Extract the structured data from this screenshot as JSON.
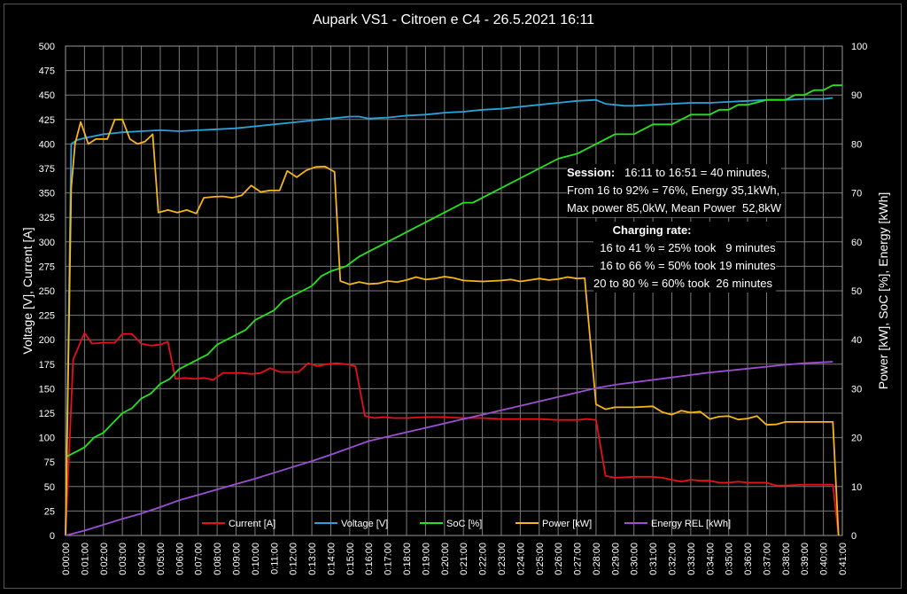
{
  "chart_data": {
    "type": "line",
    "title": "Aupark VS1 - Citroen e C4 - 26.5.2021 16:11",
    "ylabel_left": "Voltage [V], Current [A]",
    "ylabel_right": "Power [kW], SoC [%], Energy [kWh]",
    "xlabel": "",
    "ylim_left": [
      0,
      500
    ],
    "ylim_right": [
      0,
      100
    ],
    "xlim_minutes": [
      0,
      41
    ],
    "grid": true,
    "legend_position": "bottom",
    "x_tick_labels": [
      "0:00:00",
      "0:01:00",
      "0:02:00",
      "0:03:00",
      "0:04:00",
      "0:05:00",
      "0:06:00",
      "0:07:00",
      "0:08:00",
      "0:09:00",
      "0:10:00",
      "0:11:00",
      "0:12:00",
      "0:13:00",
      "0:14:00",
      "0:15:00",
      "0:16:00",
      "0:17:00",
      "0:18:00",
      "0:19:00",
      "0:20:00",
      "0:21:00",
      "0:22:00",
      "0:23:00",
      "0:24:00",
      "0:25:00",
      "0:26:00",
      "0:27:00",
      "0:28:00",
      "0:29:00",
      "0:30:00",
      "0:31:00",
      "0:32:00",
      "0:33:00",
      "0:34:00",
      "0:35:00",
      "0:36:00",
      "0:37:00",
      "0:38:00",
      "0:39:00",
      "0:40:00",
      "0:41:00"
    ],
    "y_left_ticks": [
      0,
      25,
      50,
      75,
      100,
      125,
      150,
      175,
      200,
      225,
      250,
      275,
      300,
      325,
      350,
      375,
      400,
      425,
      450,
      475,
      500
    ],
    "y_right_ticks": [
      0,
      10,
      20,
      30,
      40,
      50,
      60,
      70,
      80,
      90,
      100
    ],
    "series": [
      {
        "name": "Current [A]",
        "axis": "left",
        "color": "#e8101a",
        "points": [
          [
            0,
            0
          ],
          [
            0.4,
            180
          ],
          [
            1,
            207
          ],
          [
            1.4,
            196
          ],
          [
            2,
            197
          ],
          [
            2.6,
            197
          ],
          [
            3,
            206
          ],
          [
            3.5,
            206
          ],
          [
            4,
            196
          ],
          [
            4.5,
            194
          ],
          [
            5,
            195
          ],
          [
            5.4,
            198
          ],
          [
            5.8,
            160
          ],
          [
            6.3,
            161
          ],
          [
            6.8,
            160
          ],
          [
            7.3,
            161
          ],
          [
            7.8,
            159
          ],
          [
            8.3,
            166
          ],
          [
            8.8,
            166
          ],
          [
            9.3,
            166
          ],
          [
            9.8,
            165
          ],
          [
            10.3,
            166
          ],
          [
            10.8,
            171
          ],
          [
            11.3,
            167
          ],
          [
            11.8,
            167
          ],
          [
            12.3,
            167
          ],
          [
            12.8,
            176
          ],
          [
            13.3,
            173
          ],
          [
            13.8,
            175
          ],
          [
            14.3,
            176
          ],
          [
            14.8,
            175
          ],
          [
            15.3,
            173
          ],
          [
            15.8,
            122
          ],
          [
            16.3,
            120
          ],
          [
            16.8,
            121
          ],
          [
            17.3,
            120
          ],
          [
            18,
            120
          ],
          [
            19,
            121
          ],
          [
            20,
            121
          ],
          [
            21,
            120
          ],
          [
            22,
            120
          ],
          [
            23,
            119
          ],
          [
            24,
            119
          ],
          [
            25,
            119
          ],
          [
            26,
            118
          ],
          [
            27,
            118
          ],
          [
            27.5,
            119
          ],
          [
            28,
            118
          ],
          [
            28.5,
            61
          ],
          [
            29,
            59
          ],
          [
            30,
            60
          ],
          [
            31,
            60
          ],
          [
            31.5,
            59
          ],
          [
            32,
            57
          ],
          [
            32.5,
            55
          ],
          [
            33,
            57
          ],
          [
            33.5,
            56
          ],
          [
            34,
            56
          ],
          [
            34.5,
            54
          ],
          [
            35,
            54
          ],
          [
            35.5,
            55
          ],
          [
            36,
            54
          ],
          [
            37,
            54
          ],
          [
            37.5,
            51
          ],
          [
            38,
            51
          ],
          [
            39,
            52
          ],
          [
            40.5,
            52
          ],
          [
            40.8,
            0
          ]
        ]
      },
      {
        "name": "Voltage [V]",
        "axis": "left",
        "color": "#28a4dc",
        "points": [
          [
            0,
            0
          ],
          [
            0.3,
            400
          ],
          [
            0.6,
            404
          ],
          [
            1,
            406
          ],
          [
            2,
            410
          ],
          [
            3,
            412
          ],
          [
            4,
            413
          ],
          [
            5,
            414
          ],
          [
            6,
            413
          ],
          [
            7,
            414
          ],
          [
            8,
            415
          ],
          [
            9,
            416
          ],
          [
            10,
            418
          ],
          [
            11,
            420
          ],
          [
            12,
            422
          ],
          [
            13,
            424
          ],
          [
            14,
            426
          ],
          [
            15,
            428
          ],
          [
            15.5,
            428
          ],
          [
            16,
            426
          ],
          [
            17,
            427
          ],
          [
            18,
            429
          ],
          [
            19,
            430
          ],
          [
            20,
            432
          ],
          [
            21,
            433
          ],
          [
            22,
            435
          ],
          [
            23,
            436
          ],
          [
            24,
            438
          ],
          [
            25,
            440
          ],
          [
            26,
            442
          ],
          [
            27,
            444
          ],
          [
            28,
            445
          ],
          [
            28.5,
            441
          ],
          [
            29,
            440
          ],
          [
            29.5,
            439
          ],
          [
            30,
            439
          ],
          [
            31,
            440
          ],
          [
            32,
            441
          ],
          [
            33,
            442
          ],
          [
            34,
            442
          ],
          [
            35,
            443
          ],
          [
            36,
            444
          ],
          [
            37,
            445
          ],
          [
            38,
            445
          ],
          [
            39,
            446
          ],
          [
            40,
            446
          ],
          [
            40.5,
            447
          ]
        ]
      },
      {
        "name": "SoC [%]",
        "axis": "right",
        "color": "#27e31d",
        "points": [
          [
            0,
            16
          ],
          [
            1,
            18
          ],
          [
            1.5,
            20
          ],
          [
            2,
            21
          ],
          [
            2.5,
            23
          ],
          [
            3,
            25
          ],
          [
            3.5,
            26
          ],
          [
            4,
            28
          ],
          [
            4.5,
            29
          ],
          [
            5,
            31
          ],
          [
            5.5,
            32
          ],
          [
            6,
            34
          ],
          [
            7,
            36
          ],
          [
            7.5,
            37
          ],
          [
            8,
            39
          ],
          [
            9,
            41
          ],
          [
            9.5,
            42
          ],
          [
            10,
            44
          ],
          [
            11,
            46
          ],
          [
            11.5,
            48
          ],
          [
            12,
            49
          ],
          [
            13,
            51
          ],
          [
            13.5,
            53
          ],
          [
            14,
            54
          ],
          [
            14.8,
            55
          ],
          [
            15.5,
            57
          ],
          [
            16,
            58
          ],
          [
            17,
            60
          ],
          [
            18,
            62
          ],
          [
            19,
            64
          ],
          [
            20,
            66
          ],
          [
            21,
            68
          ],
          [
            21.5,
            68
          ],
          [
            22,
            69
          ],
          [
            23,
            71
          ],
          [
            24,
            73
          ],
          [
            25,
            75
          ],
          [
            26,
            77
          ],
          [
            27,
            78
          ],
          [
            28,
            80
          ],
          [
            28.5,
            81
          ],
          [
            29,
            82
          ],
          [
            30,
            82
          ],
          [
            30.5,
            83
          ],
          [
            31,
            84
          ],
          [
            32,
            84
          ],
          [
            32.5,
            85
          ],
          [
            33,
            86
          ],
          [
            34,
            86
          ],
          [
            34.5,
            87
          ],
          [
            35,
            87
          ],
          [
            35.5,
            88
          ],
          [
            36,
            88
          ],
          [
            37,
            89
          ],
          [
            38,
            89
          ],
          [
            38.5,
            90
          ],
          [
            39,
            90
          ],
          [
            39.5,
            91
          ],
          [
            40,
            91
          ],
          [
            40.5,
            92
          ],
          [
            41,
            92
          ]
        ]
      },
      {
        "name": "Power [kW]",
        "axis": "right",
        "color": "#f7b51c",
        "points": [
          [
            0,
            0
          ],
          [
            0.3,
            71
          ],
          [
            0.5,
            80
          ],
          [
            0.8,
            84.5
          ],
          [
            1.2,
            80
          ],
          [
            1.6,
            81
          ],
          [
            2.2,
            81
          ],
          [
            2.6,
            85
          ],
          [
            3,
            85
          ],
          [
            3.4,
            81
          ],
          [
            3.8,
            80
          ],
          [
            4.2,
            80.5
          ],
          [
            4.6,
            82
          ],
          [
            4.9,
            66
          ],
          [
            5.4,
            66.5
          ],
          [
            5.9,
            66
          ],
          [
            6.4,
            66.5
          ],
          [
            6.9,
            65.8
          ],
          [
            7.3,
            69
          ],
          [
            7.8,
            69.2
          ],
          [
            8.3,
            69.3
          ],
          [
            8.8,
            69
          ],
          [
            9.3,
            69.5
          ],
          [
            9.8,
            71.5
          ],
          [
            10.3,
            70.2
          ],
          [
            10.8,
            70.5
          ],
          [
            11.3,
            70.5
          ],
          [
            11.7,
            74.5
          ],
          [
            12.2,
            73.2
          ],
          [
            12.7,
            74.6
          ],
          [
            13.2,
            75.3
          ],
          [
            13.7,
            75.4
          ],
          [
            14.2,
            74.3
          ],
          [
            14.5,
            52
          ],
          [
            15,
            51.3
          ],
          [
            15.5,
            51.8
          ],
          [
            16,
            51.4
          ],
          [
            16.5,
            51.5
          ],
          [
            17,
            52
          ],
          [
            17.5,
            51.8
          ],
          [
            18,
            52.2
          ],
          [
            18.5,
            52.8
          ],
          [
            19,
            52.3
          ],
          [
            19.5,
            52.5
          ],
          [
            20,
            52.9
          ],
          [
            20.5,
            52.6
          ],
          [
            21,
            52.1
          ],
          [
            22,
            51.9
          ],
          [
            23,
            52.1
          ],
          [
            23.5,
            52.3
          ],
          [
            24,
            51.9
          ],
          [
            24.5,
            52.2
          ],
          [
            25,
            52.5
          ],
          [
            25.5,
            52.2
          ],
          [
            26,
            52.4
          ],
          [
            26.5,
            52.8
          ],
          [
            27,
            52.5
          ],
          [
            27.4,
            52.6
          ],
          [
            28,
            26.8
          ],
          [
            28.5,
            25.8
          ],
          [
            29,
            26.2
          ],
          [
            30,
            26.2
          ],
          [
            31,
            26.4
          ],
          [
            31.5,
            25.2
          ],
          [
            32,
            24.7
          ],
          [
            32.5,
            25.5
          ],
          [
            33,
            25.1
          ],
          [
            33.5,
            25.3
          ],
          [
            34,
            23.8
          ],
          [
            34.5,
            24.3
          ],
          [
            35,
            24.4
          ],
          [
            35.5,
            23.7
          ],
          [
            36,
            23.9
          ],
          [
            36.5,
            24.4
          ],
          [
            37,
            22.6
          ],
          [
            37.5,
            22.7
          ],
          [
            38,
            23.2
          ],
          [
            39,
            23.2
          ],
          [
            40.5,
            23.2
          ],
          [
            40.8,
            0
          ]
        ]
      },
      {
        "name": "Energy REL [kWh]",
        "axis": "right",
        "color": "#9c4fd3",
        "points": [
          [
            0,
            0
          ],
          [
            1,
            1
          ],
          [
            2,
            2.2
          ],
          [
            3,
            3.4
          ],
          [
            4,
            4.5
          ],
          [
            5,
            5.8
          ],
          [
            6,
            7.2
          ],
          [
            7,
            8.3
          ],
          [
            8,
            9.4
          ],
          [
            9,
            10.5
          ],
          [
            10,
            11.6
          ],
          [
            11,
            12.8
          ],
          [
            12,
            14
          ],
          [
            13,
            15.2
          ],
          [
            14,
            16.5
          ],
          [
            15,
            17.9
          ],
          [
            16,
            19.3
          ],
          [
            17,
            20.2
          ],
          [
            18,
            21.1
          ],
          [
            19,
            22
          ],
          [
            20,
            22.9
          ],
          [
            21,
            23.8
          ],
          [
            22,
            24.7
          ],
          [
            23,
            25.6
          ],
          [
            24,
            26.5
          ],
          [
            25,
            27.4
          ],
          [
            26,
            28.3
          ],
          [
            27,
            29.2
          ],
          [
            28,
            30.1
          ],
          [
            29,
            30.8
          ],
          [
            30,
            31.3
          ],
          [
            31,
            31.8
          ],
          [
            32,
            32.3
          ],
          [
            33,
            32.8
          ],
          [
            34,
            33.3
          ],
          [
            35,
            33.7
          ],
          [
            36,
            34.1
          ],
          [
            37,
            34.5
          ],
          [
            38,
            34.9
          ],
          [
            39,
            35.2
          ],
          [
            40.5,
            35.5
          ]
        ]
      }
    ]
  },
  "annotations": {
    "session_label": "Session:",
    "session_line1": "16:11 to 16:51 = 40 minutes,",
    "session_line2": "From 16 to 92% = 76%, Energy 35,1kWh,",
    "session_line3": "Max power 85,0kW, Mean Power  52,8kW",
    "rate_label": "Charging rate:",
    "rate_line1": "16 to 41 % = 25% took   9 minutes",
    "rate_line2": "16 to 66 % = 50% took 19 minutes",
    "rate_line3": "20 to 80 % = 60% took  26 minutes"
  }
}
